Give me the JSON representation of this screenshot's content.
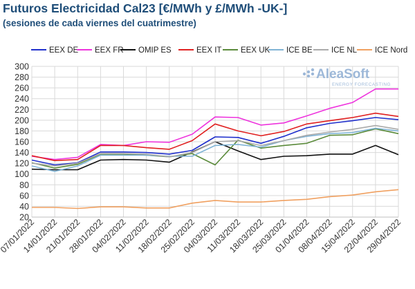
{
  "header": {
    "title": "Futuros Electricidad Cal23 [€/MWh y £/MWh -UK-]",
    "subtitle": "(sesiones de cada viernes del cuatrimestre)"
  },
  "logo": {
    "name": "AleaSoft",
    "tagline": "ENERGY FORECASTING",
    "color": "#9db8d8"
  },
  "chart_data": {
    "type": "line",
    "title": "Futuros Electricidad Cal23 [€/MWh y £/MWh -UK-]",
    "subtitle": "(sesiones de cada viernes del cuatrimestre)",
    "xlabel": "",
    "ylabel": "",
    "ylim": [
      20,
      300
    ],
    "yticks": [
      20,
      40,
      60,
      80,
      100,
      120,
      140,
      160,
      180,
      200,
      220,
      240,
      260,
      280,
      300
    ],
    "grid": true,
    "legend_position": "top",
    "categories": [
      "07/01/2022",
      "14/01/2022",
      "21/01/2022",
      "28/01/2022",
      "04/02/2022",
      "11/02/2022",
      "18/02/2022",
      "25/02/2022",
      "04/03/2022",
      "11/03/2022",
      "18/03/2022",
      "25/03/2022",
      "01/04/2022",
      "08/04/2022",
      "15/04/2022",
      "22/04/2022",
      "29/04/2022"
    ],
    "series": [
      {
        "name": "EEX DE",
        "color": "#1f2fcc",
        "values": [
          126,
          117,
          121,
          141,
          141,
          140,
          137,
          144,
          169,
          168,
          157,
          170,
          186,
          194,
          199,
          205,
          201
        ]
      },
      {
        "name": "EEX FR",
        "color": "#ee33dd",
        "values": [
          133,
          127,
          131,
          155,
          153,
          160,
          159,
          174,
          206,
          205,
          191,
          195,
          208,
          222,
          233,
          258,
          258
        ]
      },
      {
        "name": "OMIP ES",
        "color": "#111111",
        "values": [
          109,
          108,
          108,
          126,
          127,
          126,
          122,
          141,
          160,
          143,
          127,
          133,
          134,
          137,
          137,
          153,
          136
        ]
      },
      {
        "name": "EEX IT",
        "color": "#e02020",
        "values": [
          134,
          125,
          127,
          153,
          153,
          149,
          146,
          162,
          193,
          180,
          171,
          179,
          193,
          199,
          205,
          213,
          207
        ]
      },
      {
        "name": "EEX UK",
        "color": "#5a8a3a",
        "values": [
          121,
          111,
          118,
          137,
          137,
          135,
          132,
          138,
          117,
          163,
          148,
          153,
          157,
          172,
          173,
          184,
          175
        ]
      },
      {
        "name": "ICE BE",
        "color": "#7fb3d5",
        "values": [
          115,
          105,
          115,
          135,
          135,
          135,
          133,
          133,
          153,
          155,
          150,
          162,
          170,
          175,
          177,
          185,
          180
        ]
      },
      {
        "name": "ICE NL",
        "color": "#aaaaaa",
        "values": [
          120,
          115,
          120,
          138,
          138,
          137,
          132,
          140,
          160,
          162,
          153,
          162,
          172,
          178,
          183,
          190,
          183
        ]
      },
      {
        "name": "ICE Nord",
        "color": "#f0a060",
        "values": [
          38,
          38,
          36,
          39,
          39,
          37,
          37,
          46,
          51,
          48,
          48,
          51,
          53,
          58,
          61,
          67,
          71
        ]
      }
    ]
  }
}
